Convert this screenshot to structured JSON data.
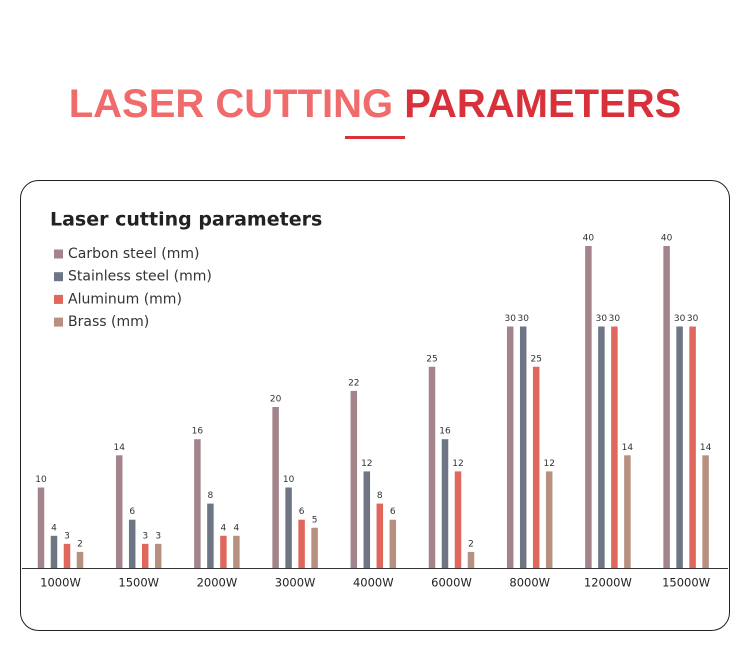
{
  "heading": [
    "LASER CUTTING",
    "PARAMETERS"
  ],
  "chart_data": {
    "type": "bar",
    "title": "Laser cutting parameters",
    "categories": [
      "1000W",
      "1500W",
      "2000W",
      "3000W",
      "4000W",
      "6000W",
      "8000W",
      "12000W",
      "15000W"
    ],
    "series": [
      {
        "name": "Carbon steel (mm)",
        "color": "#a3848b",
        "values": [
          10,
          14,
          16,
          20,
          22,
          25,
          30,
          40,
          40
        ]
      },
      {
        "name": "Stainless steel (mm)",
        "color": "#6e7585",
        "values": [
          4,
          6,
          8,
          10,
          12,
          16,
          30,
          30,
          30
        ]
      },
      {
        "name": "Aluminum (mm)",
        "color": "#e0675c",
        "values": [
          3,
          3,
          4,
          6,
          8,
          12,
          25,
          30,
          30
        ]
      },
      {
        "name": "Brass (mm)",
        "color": "#b8907f",
        "values": [
          2,
          3,
          4,
          5,
          6,
          2,
          12,
          14,
          14
        ]
      }
    ],
    "legend": "upper left"
  }
}
